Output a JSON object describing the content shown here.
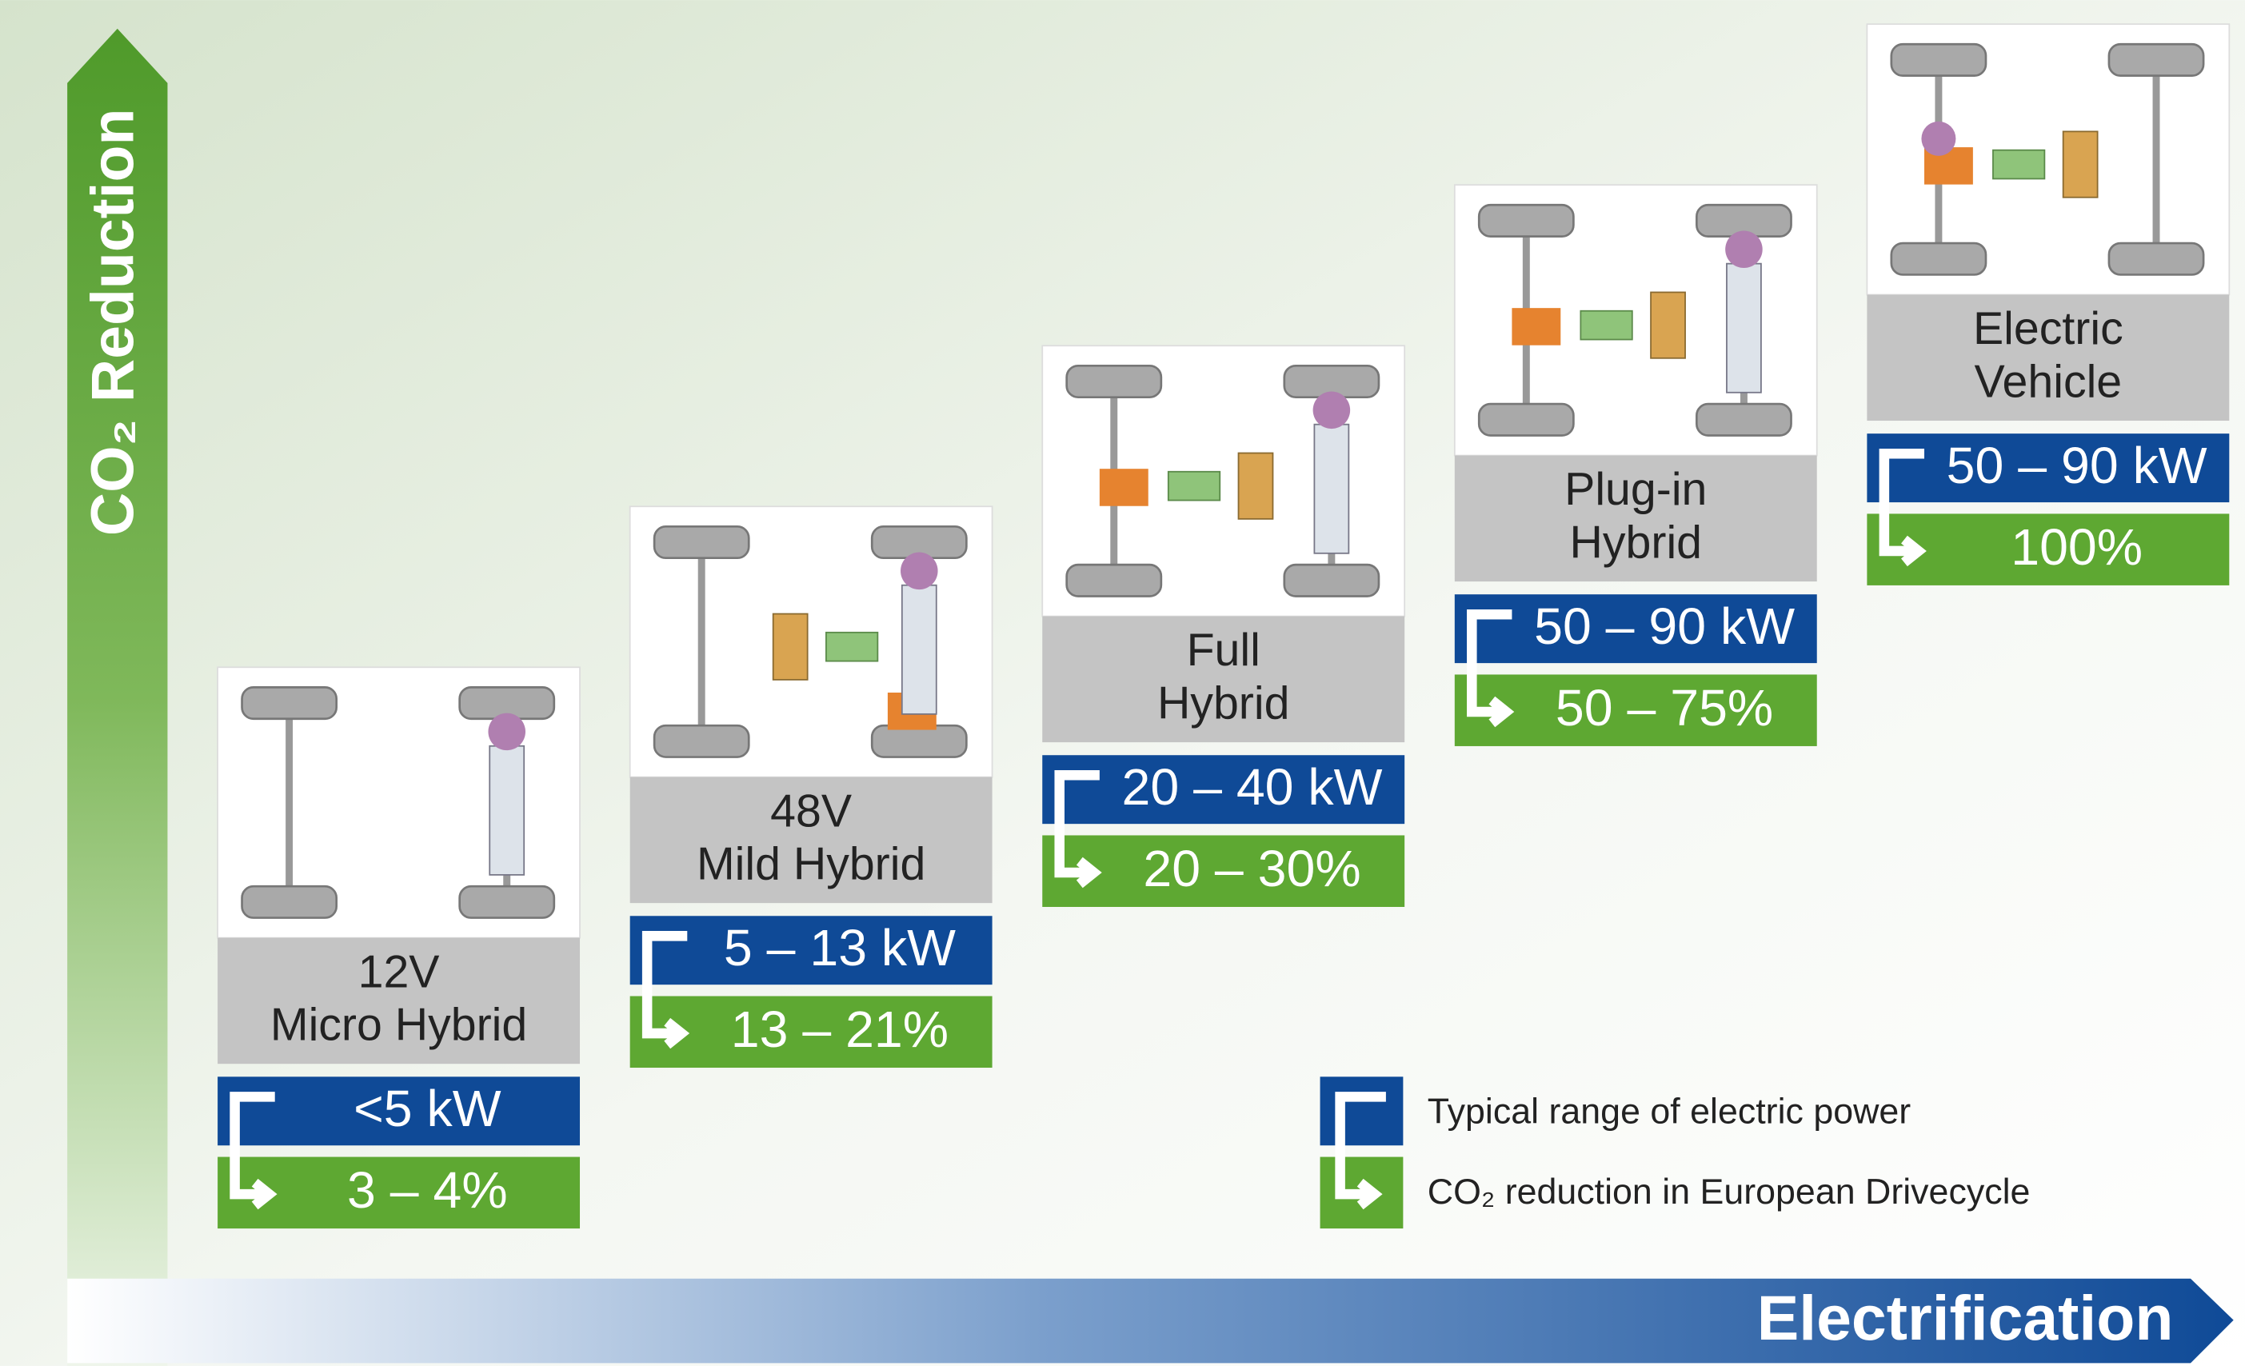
{
  "axes": {
    "y_label": "CO₂ Reduction",
    "x_label": "Electrification"
  },
  "stages": [
    {
      "name": [
        "12V",
        "Micro Hybrid"
      ],
      "power": "<5 kW",
      "co2": "3 – 4%"
    },
    {
      "name": [
        "48V",
        "Mild Hybrid"
      ],
      "power": "5 – 13 kW",
      "co2": "13 – 21%"
    },
    {
      "name": [
        "Full",
        "Hybrid"
      ],
      "power": "20 – 40 kW",
      "co2": "20 – 30%"
    },
    {
      "name": [
        "Plug-in",
        "Hybrid"
      ],
      "power": "50 – 90 kW",
      "co2": "50 – 75%"
    },
    {
      "name": [
        "Electric",
        "Vehicle"
      ],
      "power": "50 – 90 kW",
      "co2": "100%"
    }
  ],
  "legend": {
    "power": "Typical range of electric power",
    "co2": "CO₂ reduction in European Drivecycle"
  }
}
